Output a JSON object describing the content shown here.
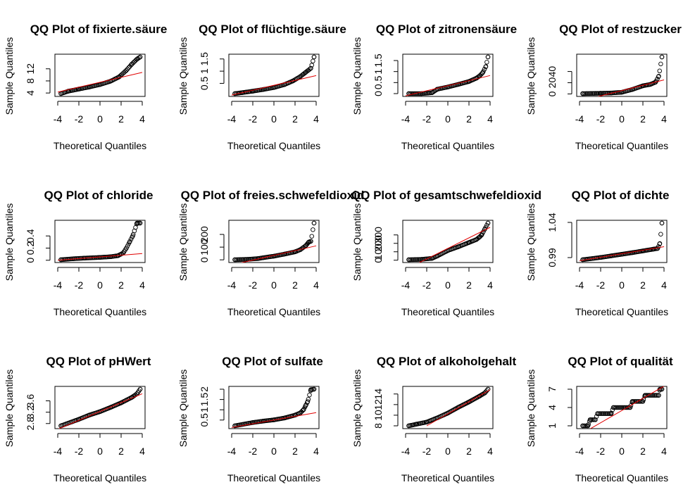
{
  "chart_data": [
    {
      "type": "scatter",
      "title": "QQ Plot of fixierte.säure",
      "xlabel": "Theoretical Quantiles",
      "ylabel": "Sample Quantiles",
      "xlim": [
        -4,
        4
      ],
      "ylim": [
        3.8,
        15.9
      ],
      "xticks": [
        -4,
        -2,
        0,
        2,
        4
      ],
      "yticks": [
        4,
        8,
        12
      ],
      "ref_line": [
        [
          -4,
          4.3
        ],
        [
          4,
          10.8
        ]
      ],
      "qq": [
        [
          -3.7,
          3.8
        ],
        [
          -3.0,
          4.6
        ],
        [
          -2.0,
          5.3
        ],
        [
          -1.0,
          6.0
        ],
        [
          0,
          6.8
        ],
        [
          1.0,
          7.9
        ],
        [
          1.8,
          9.3
        ],
        [
          2.5,
          11.5
        ],
        [
          3.0,
          13.5
        ],
        [
          3.5,
          15.2
        ],
        [
          3.8,
          15.9
        ]
      ]
    },
    {
      "type": "scatter",
      "title": "QQ Plot of flüchtige.säure",
      "xlabel": "Theoretical Quantiles",
      "ylabel": "Sample Quantiles",
      "xlim": [
        -4,
        4
      ],
      "ylim": [
        0.08,
        1.58
      ],
      "xticks": [
        -4,
        -2,
        0,
        2,
        4
      ],
      "yticks": [
        0.5,
        1.0,
        1.5
      ],
      "ref_line": [
        [
          -4,
          0.02
        ],
        [
          4,
          0.82
        ]
      ],
      "qq": [
        [
          -3.7,
          0.08
        ],
        [
          -3.0,
          0.12
        ],
        [
          -2.0,
          0.18
        ],
        [
          -1.0,
          0.25
        ],
        [
          0,
          0.33
        ],
        [
          1.0,
          0.45
        ],
        [
          1.8,
          0.6
        ],
        [
          2.5,
          0.78
        ],
        [
          3.0,
          0.95
        ],
        [
          3.5,
          1.12
        ],
        [
          3.8,
          1.58
        ]
      ]
    },
    {
      "type": "scatter",
      "title": "QQ Plot of zitronensäure",
      "xlabel": "Theoretical Quantiles",
      "ylabel": "Sample Quantiles",
      "xlim": [
        -4,
        4
      ],
      "ylim": [
        0,
        1.66
      ],
      "xticks": [
        -4,
        -2,
        0,
        2,
        4
      ],
      "yticks": [
        0.0,
        0.5,
        1.0,
        1.5
      ],
      "ref_line": [
        [
          -4,
          -0.1
        ],
        [
          4,
          0.82
        ]
      ],
      "qq": [
        [
          -3.7,
          0
        ],
        [
          -2.5,
          0
        ],
        [
          -1.5,
          0.04
        ],
        [
          -1.0,
          0.2
        ],
        [
          0,
          0.3
        ],
        [
          1.0,
          0.42
        ],
        [
          2.0,
          0.55
        ],
        [
          2.7,
          0.7
        ],
        [
          3.0,
          0.8
        ],
        [
          3.3,
          0.95
        ],
        [
          3.6,
          1.23
        ],
        [
          3.8,
          1.66
        ]
      ]
    },
    {
      "type": "scatter",
      "title": "QQ Plot of restzucker",
      "xlabel": "Theoretical Quantiles",
      "ylabel": "Sample Quantiles",
      "xlim": [
        -4,
        4
      ],
      "ylim": [
        0.6,
        65.8
      ],
      "xticks": [
        -4,
        -2,
        0,
        2,
        4
      ],
      "yticks": [
        0,
        20,
        40
      ],
      "ref_line": [
        [
          -4,
          -13
        ],
        [
          4,
          25
        ]
      ],
      "qq": [
        [
          -3.7,
          0.6
        ],
        [
          -2.0,
          1.2
        ],
        [
          -1.0,
          1.7
        ],
        [
          0,
          3.0
        ],
        [
          1.0,
          8.0
        ],
        [
          2.0,
          14.5
        ],
        [
          2.7,
          17.0
        ],
        [
          3.2,
          21
        ],
        [
          3.5,
          31.6
        ],
        [
          3.8,
          65.8
        ]
      ]
    },
    {
      "type": "scatter",
      "title": "QQ Plot of chloride",
      "xlabel": "Theoretical Quantiles",
      "ylabel": "Sample Quantiles",
      "xlim": [
        -4,
        4
      ],
      "ylim": [
        0.009,
        0.611
      ],
      "xticks": [
        -4,
        -2,
        0,
        2,
        4
      ],
      "yticks": [
        0.0,
        0.2,
        0.4
      ],
      "ref_line": [
        [
          -4,
          0.0
        ],
        [
          4,
          0.11
        ]
      ],
      "qq": [
        [
          -3.7,
          0.009
        ],
        [
          -2.5,
          0.025
        ],
        [
          -1.5,
          0.035
        ],
        [
          0,
          0.047
        ],
        [
          1.0,
          0.058
        ],
        [
          1.7,
          0.075
        ],
        [
          2.2,
          0.12
        ],
        [
          2.5,
          0.2
        ],
        [
          2.8,
          0.3
        ],
        [
          3.1,
          0.4
        ],
        [
          3.5,
          0.611
        ],
        [
          3.8,
          0.611
        ]
      ]
    },
    {
      "type": "scatter",
      "title": "QQ Plot of freies.schwefeldioxid",
      "xlabel": "Theoretical Quantiles",
      "ylabel": "Sample Quantiles",
      "xlim": [
        -4,
        4
      ],
      "ylim": [
        1,
        289
      ],
      "xticks": [
        -4,
        -2,
        0,
        2,
        4
      ],
      "yticks": [
        0,
        100,
        200
      ],
      "ref_line": [
        [
          -4,
          -40
        ],
        [
          4,
          110
        ]
      ],
      "qq": [
        [
          -3.7,
          1
        ],
        [
          -2.5,
          4
        ],
        [
          -1.5,
          10
        ],
        [
          -1.0,
          17
        ],
        [
          0,
          29
        ],
        [
          1.0,
          45
        ],
        [
          2.0,
          63
        ],
        [
          2.5,
          80
        ],
        [
          3.0,
          110
        ],
        [
          3.3,
          140
        ],
        [
          3.5,
          146
        ],
        [
          3.8,
          289
        ]
      ]
    },
    {
      "type": "scatter",
      "title": "QQ Plot of gesamtschwefeldioxid",
      "xlabel": "Theoretical Quantiles",
      "ylabel": "Sample Quantiles",
      "xlim": [
        -4,
        4
      ],
      "ylim": [
        6,
        440
      ],
      "xticks": [
        -4,
        -2,
        0,
        2,
        4
      ],
      "yticks": [
        0,
        100,
        200,
        300
      ],
      "ref_line": [
        [
          -4,
          -110
        ],
        [
          4,
          390
        ]
      ],
      "qq": [
        [
          -3.7,
          6
        ],
        [
          -2.5,
          10
        ],
        [
          -1.5,
          22
        ],
        [
          -1.0,
          50
        ],
        [
          0,
          115
        ],
        [
          1.0,
          160
        ],
        [
          2.0,
          210
        ],
        [
          2.7,
          245
        ],
        [
          3.0,
          275
        ],
        [
          3.2,
          300
        ],
        [
          3.5,
          370
        ],
        [
          3.8,
          440
        ]
      ]
    },
    {
      "type": "scatter",
      "title": "QQ Plot of dichte",
      "xlabel": "Theoretical Quantiles",
      "ylabel": "Sample Quantiles",
      "xlim": [
        -4,
        4
      ],
      "ylim": [
        0.987,
        1.039
      ],
      "xticks": [
        -4,
        -2,
        0,
        2,
        4
      ],
      "yticks": [
        0.99,
        1.04
      ],
      "ref_line": [
        [
          -4,
          0.9855
        ],
        [
          4,
          1.0055
        ]
      ],
      "qq": [
        [
          -3.7,
          0.987
        ],
        [
          -2.0,
          0.9902
        ],
        [
          -1.0,
          0.9925
        ],
        [
          0,
          0.9947
        ],
        [
          1.0,
          0.997
        ],
        [
          2.0,
          0.9995
        ],
        [
          3.0,
          1.002
        ],
        [
          3.4,
          1.003
        ],
        [
          3.6,
          1.01
        ],
        [
          3.8,
          1.039
        ]
      ]
    },
    {
      "type": "scatter",
      "title": "QQ Plot of pHWert",
      "xlabel": "Theoretical Quantiles",
      "ylabel": "Sample Quantiles",
      "xlim": [
        -4,
        4
      ],
      "ylim": [
        2.72,
        4.01
      ],
      "xticks": [
        -4,
        -2,
        0,
        2,
        4
      ],
      "yticks": [
        2.8,
        3.2,
        3.6
      ],
      "ref_line": [
        [
          -4,
          2.6
        ],
        [
          4,
          3.85
        ]
      ],
      "qq": [
        [
          -3.7,
          2.72
        ],
        [
          -2.0,
          2.95
        ],
        [
          -1.0,
          3.1
        ],
        [
          0,
          3.22
        ],
        [
          1.0,
          3.37
        ],
        [
          2.0,
          3.53
        ],
        [
          3.0,
          3.72
        ],
        [
          3.5,
          3.85
        ],
        [
          3.8,
          4.01
        ]
      ]
    },
    {
      "type": "scatter",
      "title": "QQ Plot of sulfate",
      "xlabel": "Theoretical Quantiles",
      "ylabel": "Sample Quantiles",
      "xlim": [
        -4,
        4
      ],
      "ylim": [
        0.22,
        2.0
      ],
      "xticks": [
        -4,
        -2,
        0,
        2,
        4
      ],
      "yticks": [
        0.5,
        1.0,
        1.5,
        2.0
      ],
      "ref_line": [
        [
          -4,
          0.14
        ],
        [
          4,
          0.86
        ]
      ],
      "qq": [
        [
          -3.7,
          0.22
        ],
        [
          -2.0,
          0.38
        ],
        [
          -1.0,
          0.45
        ],
        [
          0,
          0.51
        ],
        [
          1.0,
          0.6
        ],
        [
          2.0,
          0.74
        ],
        [
          2.5,
          0.85
        ],
        [
          2.8,
          1.0
        ],
        [
          3.0,
          1.2
        ],
        [
          3.2,
          1.4
        ],
        [
          3.5,
          1.98
        ],
        [
          3.8,
          2.0
        ]
      ]
    },
    {
      "type": "scatter",
      "title": "QQ Plot of alkoholgehalt",
      "xlabel": "Theoretical Quantiles",
      "ylabel": "Sample Quantiles",
      "xlim": [
        -4,
        4
      ],
      "ylim": [
        8.0,
        14.9
      ],
      "xticks": [
        -4,
        -2,
        0,
        2,
        4
      ],
      "yticks": [
        8,
        10,
        12,
        14
      ],
      "ref_line": [
        [
          -2.0,
          8.0
        ],
        [
          4,
          14.8
        ]
      ],
      "qq": [
        [
          -3.7,
          8.0
        ],
        [
          -3.0,
          8.3
        ],
        [
          -2.0,
          8.7
        ],
        [
          -1.0,
          9.5
        ],
        [
          0,
          10.4
        ],
        [
          1.0,
          11.5
        ],
        [
          2.0,
          12.5
        ],
        [
          3.0,
          13.6
        ],
        [
          3.5,
          14.2
        ],
        [
          3.8,
          14.9
        ]
      ]
    },
    {
      "type": "scatter",
      "title": "QQ Plot of qualität",
      "xlabel": "Theoretical Quantiles",
      "ylabel": "Sample Quantiles",
      "xlim": [
        -4,
        4
      ],
      "ylim": [
        1,
        7
      ],
      "xticks": [
        -4,
        -2,
        0,
        2,
        4
      ],
      "yticks": [
        1,
        4,
        7
      ],
      "ref_line": [
        [
          -4,
          -0.5
        ],
        [
          4,
          7.5
        ]
      ],
      "qq": [
        [
          -3.7,
          1
        ],
        [
          -3.2,
          1
        ],
        [
          -3.0,
          2
        ],
        [
          -2.5,
          2
        ],
        [
          -2.3,
          3
        ],
        [
          -1.0,
          3
        ],
        [
          -0.8,
          4
        ],
        [
          0.8,
          4
        ],
        [
          1.0,
          5
        ],
        [
          2.0,
          5
        ],
        [
          2.2,
          6
        ],
        [
          3.5,
          6
        ],
        [
          3.6,
          7
        ],
        [
          3.8,
          7
        ]
      ]
    }
  ]
}
